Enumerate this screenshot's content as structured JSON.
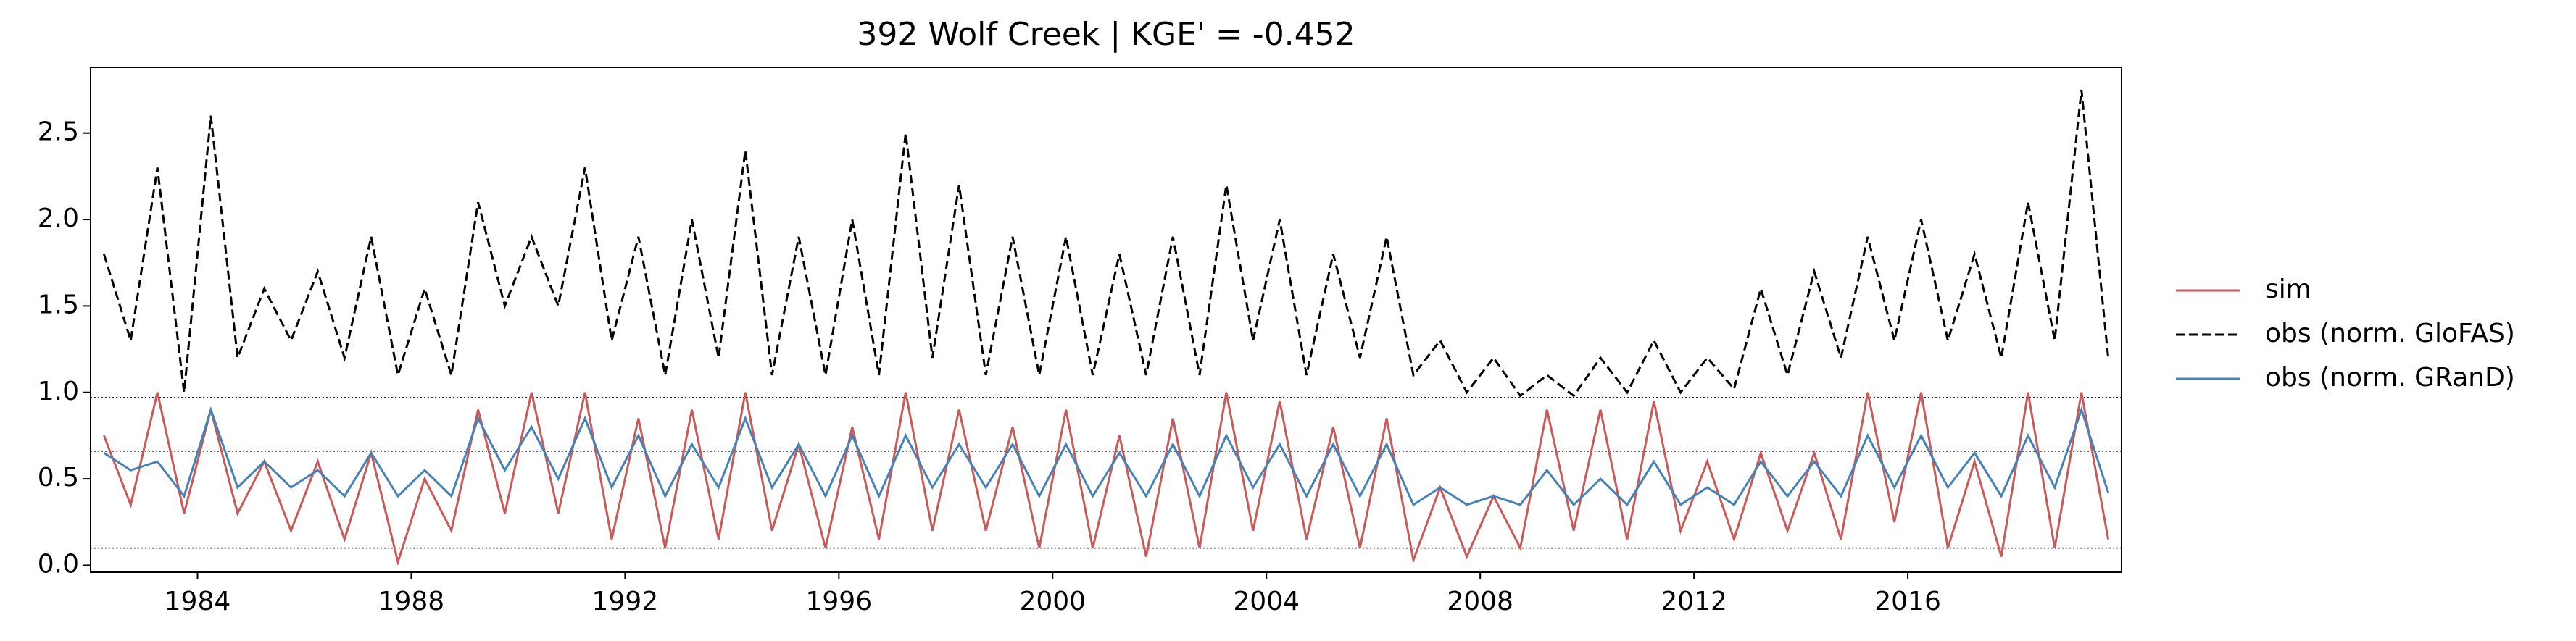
{
  "chart_data": {
    "type": "line",
    "title": "392  Wolf Creek | KGE' = -0.452",
    "x": [
      1982.25,
      1982.75,
      1983.25,
      1983.75,
      1984.25,
      1984.75,
      1985.25,
      1985.75,
      1986.25,
      1986.75,
      1987.25,
      1987.75,
      1988.25,
      1988.75,
      1989.25,
      1989.75,
      1990.25,
      1990.75,
      1991.25,
      1991.75,
      1992.25,
      1992.75,
      1993.25,
      1993.75,
      1994.25,
      1994.75,
      1995.25,
      1995.75,
      1996.25,
      1996.75,
      1997.25,
      1997.75,
      1998.25,
      1998.75,
      1999.25,
      1999.75,
      2000.25,
      2000.75,
      2001.25,
      2001.75,
      2002.25,
      2002.75,
      2003.25,
      2003.75,
      2004.25,
      2004.75,
      2005.25,
      2005.75,
      2006.25,
      2006.75,
      2007.25,
      2007.75,
      2008.25,
      2008.75,
      2009.25,
      2009.75,
      2010.25,
      2010.75,
      2011.25,
      2011.75,
      2012.25,
      2012.75,
      2013.25,
      2013.75,
      2014.25,
      2014.75,
      2015.25,
      2015.75,
      2016.25,
      2016.75,
      2017.25,
      2017.75,
      2018.25,
      2018.75,
      2019.25,
      2019.75
    ],
    "series": [
      {
        "name": "sim",
        "color": "#c85a5a",
        "dash": "none",
        "values": [
          0.75,
          0.35,
          1.0,
          0.3,
          0.9,
          0.3,
          0.6,
          0.2,
          0.6,
          0.15,
          0.65,
          0.02,
          0.5,
          0.2,
          0.9,
          0.3,
          1.0,
          0.3,
          1.0,
          0.15,
          0.85,
          0.1,
          0.9,
          0.15,
          1.0,
          0.2,
          0.7,
          0.1,
          0.8,
          0.15,
          1.0,
          0.2,
          0.9,
          0.2,
          0.8,
          0.1,
          0.9,
          0.1,
          0.75,
          0.05,
          0.85,
          0.1,
          1.0,
          0.2,
          0.95,
          0.15,
          0.8,
          0.1,
          0.85,
          0.03,
          0.45,
          0.05,
          0.4,
          0.1,
          0.9,
          0.2,
          0.9,
          0.15,
          0.95,
          0.2,
          0.6,
          0.15,
          0.65,
          0.2,
          0.65,
          0.15,
          1.0,
          0.25,
          1.0,
          0.1,
          0.6,
          0.05,
          1.0,
          0.1,
          1.0,
          0.15
        ]
      },
      {
        "name": "obs (norm. GloFAS)",
        "color": "#000000",
        "dash": "dashed",
        "values": [
          1.8,
          1.3,
          2.3,
          1.0,
          2.6,
          1.2,
          1.6,
          1.3,
          1.7,
          1.2,
          1.9,
          1.1,
          1.6,
          1.1,
          2.1,
          1.5,
          1.9,
          1.5,
          2.3,
          1.3,
          1.9,
          1.1,
          2.0,
          1.2,
          2.4,
          1.1,
          1.9,
          1.1,
          2.0,
          1.1,
          2.5,
          1.2,
          2.2,
          1.1,
          1.9,
          1.1,
          1.9,
          1.1,
          1.8,
          1.1,
          1.9,
          1.1,
          2.2,
          1.3,
          2.0,
          1.1,
          1.8,
          1.2,
          1.9,
          1.1,
          1.3,
          1.0,
          1.2,
          0.98,
          1.1,
          0.98,
          1.2,
          1.0,
          1.3,
          1.0,
          1.2,
          1.02,
          1.6,
          1.1,
          1.7,
          1.2,
          1.9,
          1.3,
          2.0,
          1.3,
          1.8,
          1.2,
          2.1,
          1.3,
          2.75,
          1.2
        ]
      },
      {
        "name": "obs (norm. GRanD)",
        "color": "#4682b4",
        "dash": "none",
        "values": [
          0.65,
          0.55,
          0.6,
          0.4,
          0.9,
          0.45,
          0.6,
          0.45,
          0.55,
          0.4,
          0.65,
          0.4,
          0.55,
          0.4,
          0.85,
          0.55,
          0.8,
          0.5,
          0.85,
          0.45,
          0.75,
          0.4,
          0.7,
          0.45,
          0.85,
          0.45,
          0.7,
          0.4,
          0.75,
          0.4,
          0.75,
          0.45,
          0.7,
          0.45,
          0.7,
          0.4,
          0.7,
          0.4,
          0.65,
          0.4,
          0.7,
          0.4,
          0.75,
          0.45,
          0.7,
          0.4,
          0.7,
          0.4,
          0.7,
          0.35,
          0.45,
          0.35,
          0.4,
          0.35,
          0.55,
          0.35,
          0.5,
          0.35,
          0.6,
          0.35,
          0.45,
          0.35,
          0.6,
          0.4,
          0.6,
          0.4,
          0.75,
          0.45,
          0.75,
          0.45,
          0.65,
          0.4,
          0.75,
          0.45,
          0.9,
          0.42
        ]
      }
    ],
    "hlines": [
      0.97,
      0.66,
      0.1
    ],
    "xlim": [
      1982,
      2020
    ],
    "xticks": [
      1984,
      1988,
      1992,
      1996,
      2000,
      2004,
      2008,
      2012,
      2016
    ],
    "ylim": [
      -0.04,
      2.88
    ],
    "yticks": [
      {
        "value": 0,
        "label": "0.0"
      },
      0.5,
      {
        "value": 1,
        "label": "1.0"
      },
      1.5,
      {
        "value": 2,
        "label": "2.0"
      },
      2.5
    ],
    "legend": "right"
  }
}
